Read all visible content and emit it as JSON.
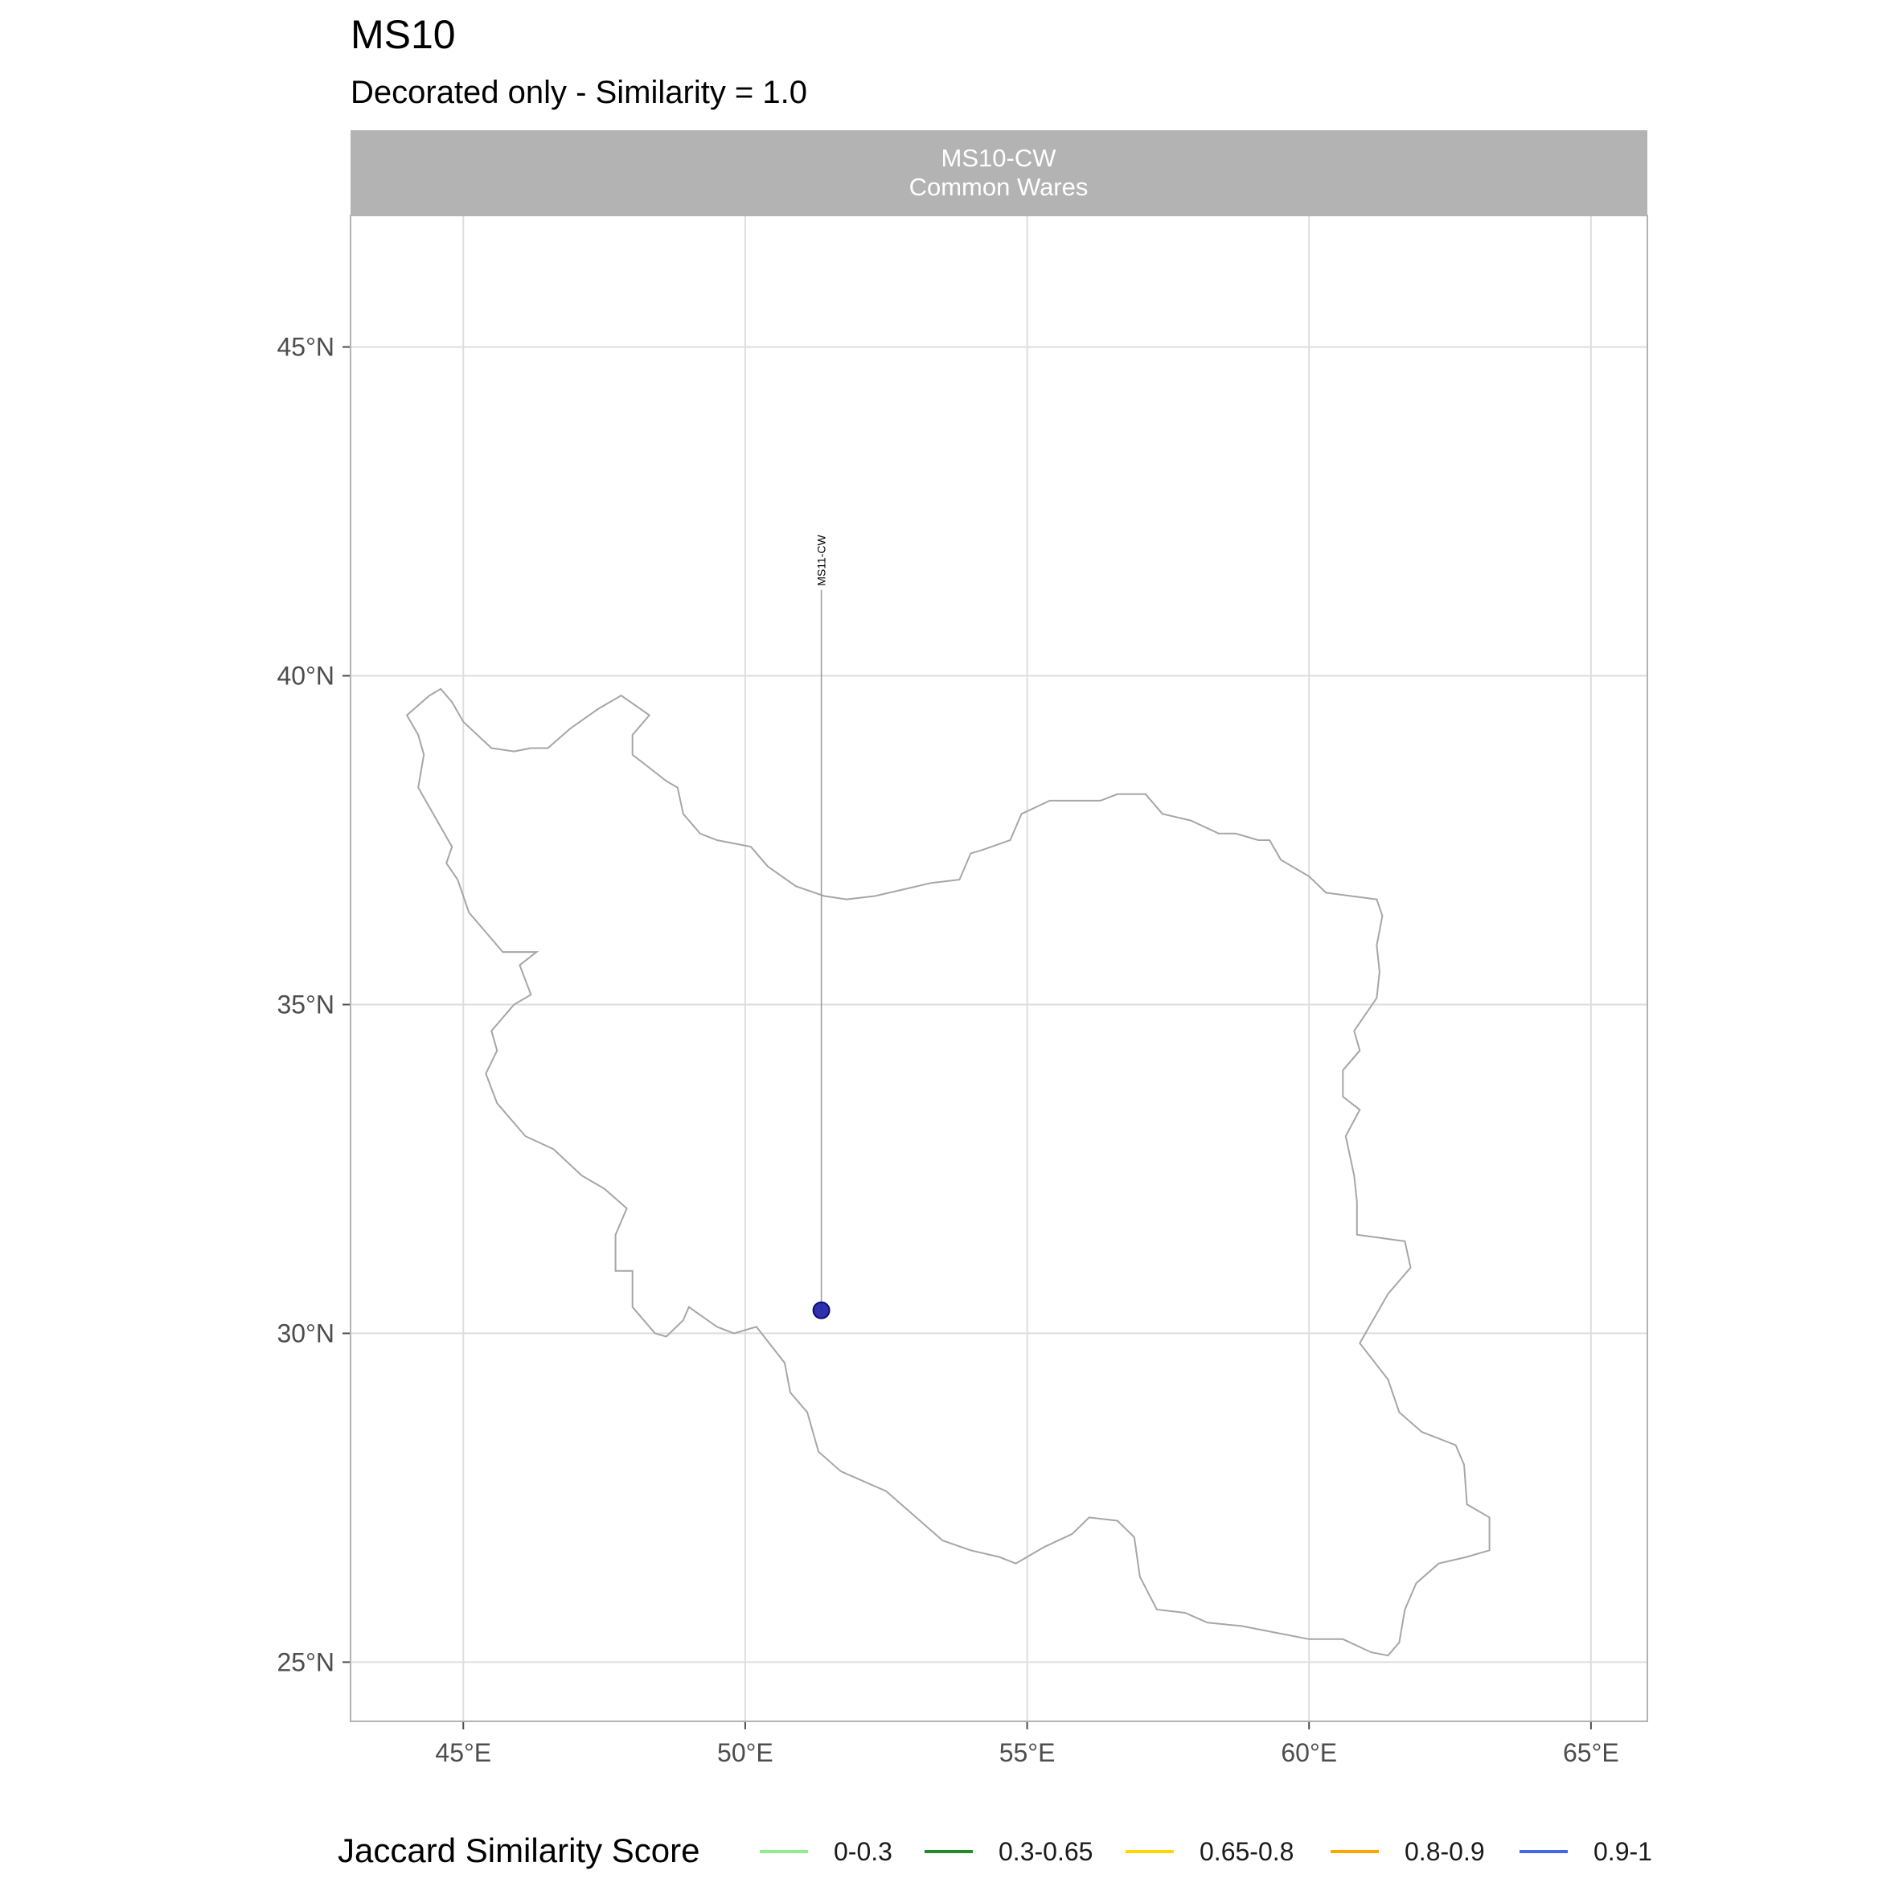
{
  "header": {
    "title": "MS10",
    "subtitle": "Decorated only - Similarity = 1.0"
  },
  "panel": {
    "strip_line1": "MS10-CW",
    "strip_line2": "Common Wares"
  },
  "chart_data": {
    "type": "map",
    "region": "Iran",
    "xlim": [
      43.0,
      66.0
    ],
    "ylim": [
      24.1,
      47.0
    ],
    "x_ticks": [
      {
        "value": 45,
        "label": "45°E"
      },
      {
        "value": 50,
        "label": "50°E"
      },
      {
        "value": 55,
        "label": "55°E"
      },
      {
        "value": 60,
        "label": "60°E"
      },
      {
        "value": 65,
        "label": "65°E"
      }
    ],
    "y_ticks": [
      {
        "value": 25,
        "label": "25°N"
      },
      {
        "value": 30,
        "label": "30°N"
      },
      {
        "value": 35,
        "label": "35°N"
      },
      {
        "value": 40,
        "label": "40°N"
      },
      {
        "value": 45,
        "label": "45°N"
      }
    ],
    "grid": true,
    "outline_color": "#a6a6a6",
    "outline": [
      [
        44.0,
        39.4
      ],
      [
        44.4,
        39.7
      ],
      [
        44.6,
        39.8
      ],
      [
        44.8,
        39.6
      ],
      [
        45.0,
        39.3
      ],
      [
        45.5,
        38.9
      ],
      [
        45.9,
        38.85
      ],
      [
        46.2,
        38.9
      ],
      [
        46.5,
        38.9
      ],
      [
        46.9,
        39.2
      ],
      [
        47.4,
        39.5
      ],
      [
        47.8,
        39.7
      ],
      [
        48.3,
        39.4
      ],
      [
        48.0,
        39.1
      ],
      [
        48.0,
        38.8
      ],
      [
        48.3,
        38.6
      ],
      [
        48.6,
        38.4
      ],
      [
        48.8,
        38.3
      ],
      [
        48.9,
        37.9
      ],
      [
        49.2,
        37.6
      ],
      [
        49.5,
        37.5
      ],
      [
        50.1,
        37.4
      ],
      [
        50.4,
        37.1
      ],
      [
        50.9,
        36.8
      ],
      [
        51.4,
        36.65
      ],
      [
        51.8,
        36.6
      ],
      [
        52.3,
        36.65
      ],
      [
        52.8,
        36.75
      ],
      [
        53.3,
        36.85
      ],
      [
        53.8,
        36.9
      ],
      [
        54.0,
        37.3
      ],
      [
        54.2,
        37.35
      ],
      [
        54.7,
        37.5
      ],
      [
        54.9,
        37.9
      ],
      [
        55.4,
        38.1
      ],
      [
        55.8,
        38.1
      ],
      [
        56.3,
        38.1
      ],
      [
        56.6,
        38.2
      ],
      [
        57.1,
        38.2
      ],
      [
        57.4,
        37.9
      ],
      [
        57.9,
        37.8
      ],
      [
        58.4,
        37.6
      ],
      [
        58.7,
        37.6
      ],
      [
        59.1,
        37.5
      ],
      [
        59.3,
        37.5
      ],
      [
        59.5,
        37.2
      ],
      [
        60.0,
        36.95
      ],
      [
        60.3,
        36.7
      ],
      [
        61.2,
        36.6
      ],
      [
        61.3,
        36.35
      ],
      [
        61.2,
        35.9
      ],
      [
        61.25,
        35.5
      ],
      [
        61.2,
        35.1
      ],
      [
        60.8,
        34.6
      ],
      [
        60.9,
        34.3
      ],
      [
        60.6,
        34.0
      ],
      [
        60.6,
        33.6
      ],
      [
        60.9,
        33.4
      ],
      [
        60.65,
        33.0
      ],
      [
        60.8,
        32.4
      ],
      [
        60.85,
        32.0
      ],
      [
        60.85,
        31.5
      ],
      [
        61.7,
        31.4
      ],
      [
        61.8,
        31.0
      ],
      [
        61.4,
        30.6
      ],
      [
        60.9,
        29.85
      ],
      [
        61.4,
        29.3
      ],
      [
        61.6,
        28.8
      ],
      [
        62.0,
        28.5
      ],
      [
        62.6,
        28.3
      ],
      [
        62.75,
        28.0
      ],
      [
        62.8,
        27.4
      ],
      [
        63.2,
        27.2
      ],
      [
        63.2,
        26.7
      ],
      [
        62.8,
        26.6
      ],
      [
        62.3,
        26.5
      ],
      [
        61.9,
        26.2
      ],
      [
        61.7,
        25.8
      ],
      [
        61.6,
        25.3
      ],
      [
        61.4,
        25.1
      ],
      [
        61.1,
        25.15
      ],
      [
        60.6,
        25.35
      ],
      [
        60.0,
        25.35
      ],
      [
        59.4,
        25.45
      ],
      [
        58.8,
        25.55
      ],
      [
        58.2,
        25.6
      ],
      [
        57.8,
        25.75
      ],
      [
        57.3,
        25.8
      ],
      [
        57.0,
        26.3
      ],
      [
        56.9,
        26.9
      ],
      [
        56.6,
        27.15
      ],
      [
        56.1,
        27.2
      ],
      [
        55.8,
        26.95
      ],
      [
        55.3,
        26.75
      ],
      [
        54.8,
        26.5
      ],
      [
        54.5,
        26.6
      ],
      [
        54.0,
        26.7
      ],
      [
        53.5,
        26.85
      ],
      [
        52.9,
        27.3
      ],
      [
        52.5,
        27.6
      ],
      [
        51.7,
        27.9
      ],
      [
        51.3,
        28.2
      ],
      [
        51.1,
        28.8
      ],
      [
        50.8,
        29.1
      ],
      [
        50.7,
        29.55
      ],
      [
        50.2,
        30.1
      ],
      [
        49.8,
        30.0
      ],
      [
        49.5,
        30.1
      ],
      [
        49.0,
        30.4
      ],
      [
        48.9,
        30.2
      ],
      [
        48.6,
        29.95
      ],
      [
        48.4,
        30.0
      ],
      [
        48.0,
        30.4
      ],
      [
        48.0,
        30.95
      ],
      [
        47.7,
        30.95
      ],
      [
        47.7,
        31.5
      ],
      [
        47.9,
        31.9
      ],
      [
        47.5,
        32.2
      ],
      [
        47.1,
        32.4
      ],
      [
        46.6,
        32.8
      ],
      [
        46.1,
        33.0
      ],
      [
        45.6,
        33.5
      ],
      [
        45.4,
        33.95
      ],
      [
        45.6,
        34.3
      ],
      [
        45.5,
        34.6
      ],
      [
        45.9,
        35.0
      ],
      [
        46.2,
        35.15
      ],
      [
        46.0,
        35.6
      ],
      [
        46.3,
        35.8
      ],
      [
        45.7,
        35.8
      ],
      [
        45.4,
        36.1
      ],
      [
        45.1,
        36.4
      ],
      [
        44.9,
        36.9
      ],
      [
        44.7,
        37.15
      ],
      [
        44.8,
        37.4
      ],
      [
        44.4,
        38.0
      ],
      [
        44.2,
        38.3
      ],
      [
        44.3,
        38.8
      ],
      [
        44.2,
        39.1
      ],
      [
        44.0,
        39.4
      ]
    ],
    "sites": [
      {
        "name": "MS11-CW",
        "lon": 51.35,
        "lat": 30.35,
        "label_lat": 42.1,
        "color": "#1a1aa6"
      }
    ],
    "legend": {
      "title": "Jaccard Similarity Score",
      "position": "bottom",
      "items": [
        {
          "label": "0-0.3",
          "color": "#90ee90"
        },
        {
          "label": "0.3-0.65",
          "color": "#228b22"
        },
        {
          "label": "0.65-0.8",
          "color": "#ffd700"
        },
        {
          "label": "0.8-0.9",
          "color": "#ffa500"
        },
        {
          "label": "0.9-1",
          "color": "#4169e1"
        }
      ]
    }
  }
}
